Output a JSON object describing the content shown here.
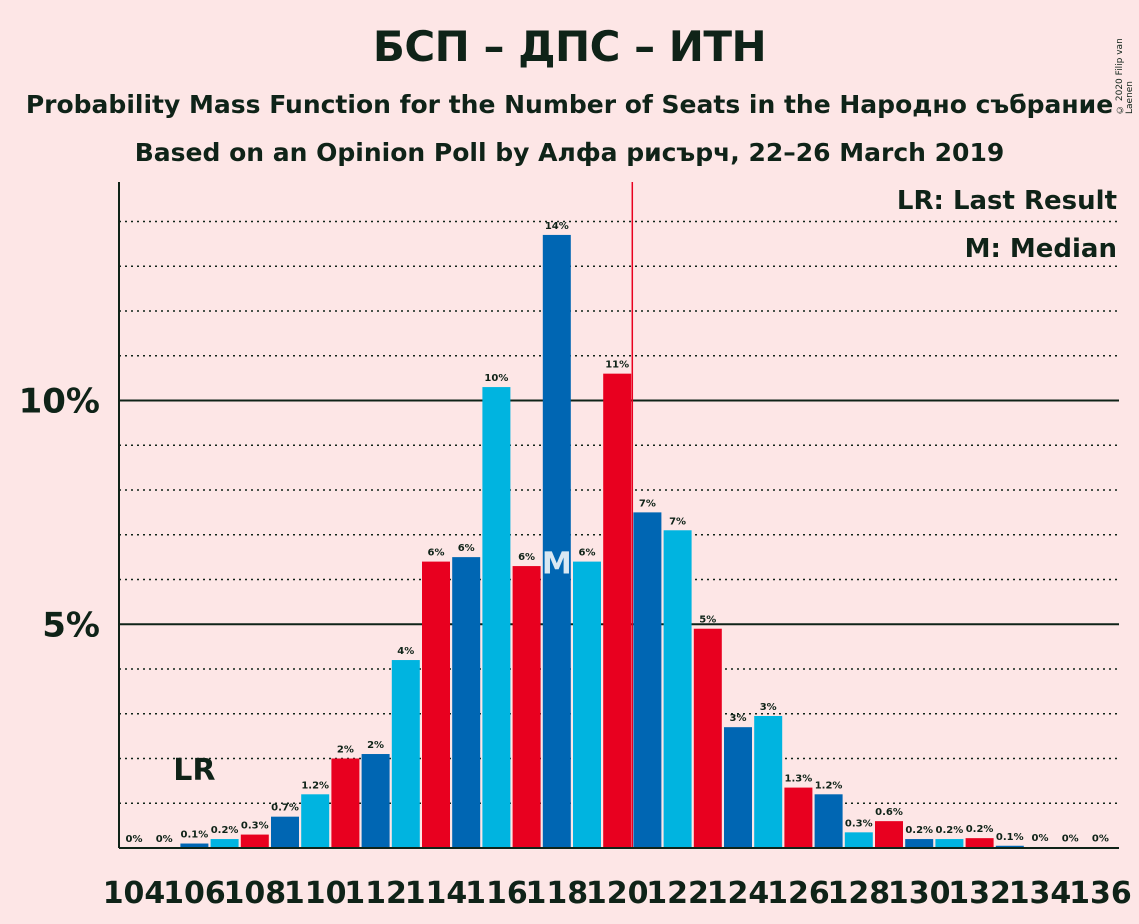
{
  "title": "БСП – ДПС – ИТН",
  "subtitle1": "Probability Mass Function for the Number of Seats in the Народно събрание",
  "subtitle2": "Based on an Opinion Poll by Алфа рисърч, 22–26 March 2019",
  "copyright": "© 2020 Filip van Laenen",
  "legend": {
    "lr": "LR: Last Result",
    "m": "M: Median"
  },
  "colors": {
    "red": "#e8001f",
    "dark_blue": "#0066b3",
    "light_blue": "#00b4e0",
    "majority_line": "#e8001f",
    "background": "#fde6e6",
    "text": "#0f2318"
  },
  "chart_data": {
    "type": "bar",
    "x": [
      104,
      105,
      106,
      107,
      108,
      109,
      110,
      111,
      112,
      113,
      114,
      115,
      116,
      117,
      118,
      119,
      120,
      121,
      122,
      123,
      124,
      125,
      126,
      127,
      128,
      129,
      130,
      131,
      132,
      133,
      134,
      135,
      136
    ],
    "values": [
      0,
      0,
      0.1,
      0.2,
      0.3,
      0.7,
      1.2,
      2,
      2.1,
      4.2,
      6.4,
      6.5,
      10.3,
      6.3,
      13.7,
      6.4,
      10.6,
      7.5,
      7.1,
      4.9,
      2.7,
      2.95,
      1.35,
      1.2,
      0.35,
      0.6,
      0.2,
      0.2,
      0.22,
      0.05,
      0.02,
      0.01,
      0.01
    ],
    "value_labels": [
      "0%",
      "0%",
      "0.1%",
      "0.2%",
      "0.3%",
      "0.7%",
      "1.2%",
      "2%",
      "2%",
      "4%",
      "6%",
      "6%",
      "10%",
      "6%",
      "14%",
      "6%",
      "11%",
      "7%",
      "7%",
      "5%",
      "3%",
      "3%",
      "1.3%",
      "1.2%",
      "0.3%",
      "0.6%",
      "0.2%",
      "0.2%",
      "0.2%",
      "0.1%",
      "0%",
      "0%",
      "0%"
    ],
    "bar_colors": [
      "red",
      "dark_blue",
      "dark_blue",
      "light_blue",
      "red",
      "dark_blue",
      "light_blue",
      "red",
      "dark_blue",
      "light_blue",
      "red",
      "dark_blue",
      "light_blue",
      "red",
      "dark_blue",
      "light_blue",
      "red",
      "dark_blue",
      "light_blue",
      "red",
      "dark_blue",
      "light_blue",
      "red",
      "dark_blue",
      "light_blue",
      "red",
      "dark_blue",
      "light_blue",
      "red",
      "dark_blue",
      "light_blue",
      "red",
      "dark_blue"
    ],
    "x_tick_labels": [
      "104",
      "106",
      "108",
      "110",
      "112",
      "114",
      "116",
      "118",
      "120",
      "122",
      "124",
      "126",
      "128",
      "130",
      "132",
      "134",
      "136"
    ],
    "y_tick_labels": [
      "5%",
      "10%"
    ],
    "y_ticks": [
      5,
      10
    ],
    "ylim": [
      0,
      15
    ],
    "minor_gridlines_every": 1,
    "last_result_seat": 106,
    "last_result_label": "LR",
    "median_seat": 118,
    "median_label": "M",
    "majority_seat": 121
  }
}
